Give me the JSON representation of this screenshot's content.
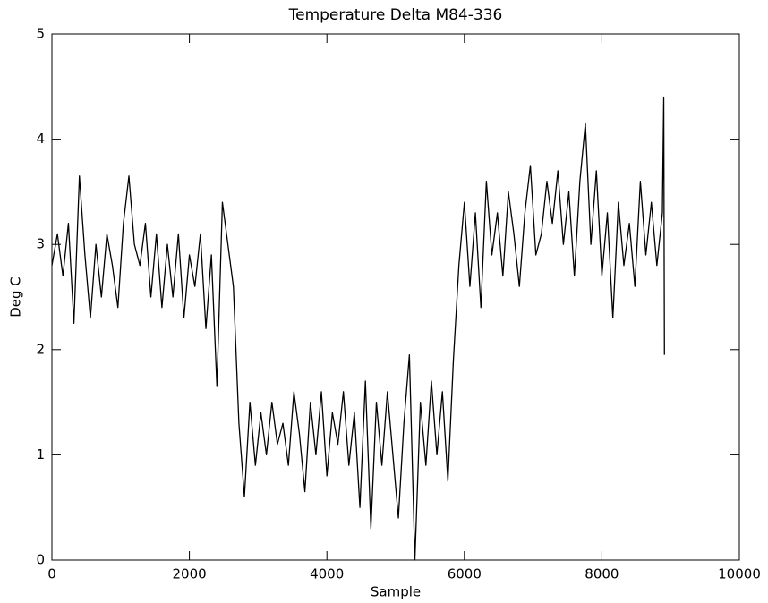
{
  "chart_data": {
    "type": "line",
    "title": "Temperature Delta M84-336",
    "x_label": "Sample",
    "y_label": "Deg C",
    "xlim": [
      0,
      10000
    ],
    "xticks": [
      0,
      2000,
      4000,
      6000,
      8000,
      10000
    ],
    "ylim": [
      0,
      5
    ],
    "yticks": [
      0,
      1,
      2,
      3,
      4,
      5
    ],
    "color": "#000000",
    "x": [
      0,
      80,
      160,
      240,
      320,
      400,
      480,
      560,
      640,
      720,
      800,
      880,
      960,
      1040,
      1120,
      1200,
      1280,
      1360,
      1440,
      1520,
      1600,
      1680,
      1760,
      1840,
      1920,
      2000,
      2080,
      2160,
      2240,
      2320,
      2400,
      2480,
      2560,
      2640,
      2720,
      2800,
      2880,
      2960,
      3040,
      3120,
      3200,
      3280,
      3360,
      3440,
      3520,
      3600,
      3680,
      3760,
      3840,
      3920,
      4000,
      4080,
      4160,
      4240,
      4320,
      4400,
      4480,
      4560,
      4640,
      4720,
      4800,
      4880,
      4960,
      5040,
      5120,
      5200,
      5280,
      5360,
      5440,
      5520,
      5600,
      5680,
      5760,
      5840,
      5920,
      6000,
      6080,
      6160,
      6240,
      6320,
      6400,
      6480,
      6560,
      6640,
      6720,
      6800,
      6880,
      6960,
      7040,
      7120,
      7200,
      7280,
      7360,
      7440,
      7520,
      7600,
      7680,
      7760,
      7840,
      7920,
      8000,
      8080,
      8160,
      8240,
      8320,
      8400,
      8480,
      8560,
      8640,
      8720,
      8800,
      8880,
      8900,
      8910
    ],
    "values": [
      2.8,
      3.1,
      2.7,
      3.2,
      2.25,
      3.65,
      2.9,
      2.3,
      3.0,
      2.5,
      3.1,
      2.8,
      2.4,
      3.2,
      3.65,
      3.0,
      2.8,
      3.2,
      2.5,
      3.1,
      2.4,
      3.0,
      2.5,
      3.1,
      2.3,
      2.9,
      2.6,
      3.1,
      2.2,
      2.9,
      1.65,
      3.4,
      3.0,
      2.6,
      1.3,
      0.6,
      1.5,
      0.9,
      1.4,
      1.0,
      1.5,
      1.1,
      1.3,
      0.9,
      1.6,
      1.2,
      0.65,
      1.5,
      1.0,
      1.6,
      0.8,
      1.4,
      1.1,
      1.6,
      0.9,
      1.4,
      0.5,
      1.7,
      0.3,
      1.5,
      0.9,
      1.6,
      1.0,
      0.4,
      1.3,
      1.95,
      0.0,
      1.5,
      0.9,
      1.7,
      1.0,
      1.6,
      0.75,
      1.9,
      2.8,
      3.4,
      2.6,
      3.3,
      2.4,
      3.6,
      2.9,
      3.3,
      2.7,
      3.5,
      3.1,
      2.6,
      3.3,
      3.75,
      2.9,
      3.1,
      3.6,
      3.2,
      3.7,
      3.0,
      3.5,
      2.7,
      3.6,
      4.15,
      3.0,
      3.7,
      2.7,
      3.3,
      2.3,
      3.4,
      2.8,
      3.2,
      2.6,
      3.6,
      2.9,
      3.4,
      2.8,
      3.3,
      4.4,
      1.95
    ]
  }
}
